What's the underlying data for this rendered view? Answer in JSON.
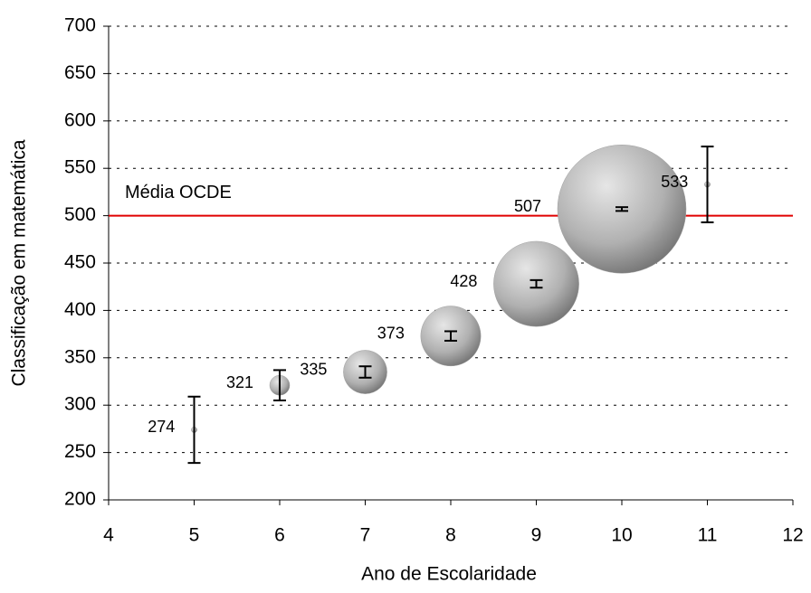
{
  "chart_data": {
    "type": "bubble",
    "x_label": "Ano de Escolaridade",
    "y_label": "Classificação em matemática",
    "x": [
      5,
      6,
      7,
      8,
      9,
      10,
      11
    ],
    "y": [
      274,
      321,
      335,
      373,
      428,
      507,
      533
    ],
    "sizes": [
      0.2,
      2.4,
      11.5,
      21.8,
      44,
      100,
      0.2
    ],
    "errors": [
      35,
      16,
      6,
      5,
      4,
      2,
      40
    ],
    "color": "#a0a0a0",
    "xlim": [
      4,
      12
    ],
    "xticks": [
      4,
      5,
      6,
      7,
      8,
      9,
      10,
      11,
      12
    ],
    "ylim": [
      200,
      700
    ],
    "yticks": [
      200,
      250,
      300,
      350,
      400,
      450,
      500,
      550,
      600,
      650,
      700
    ],
    "grid": true,
    "reference_line": {
      "value": 500,
      "label": "Média OCDE",
      "color": "#e00000"
    }
  }
}
